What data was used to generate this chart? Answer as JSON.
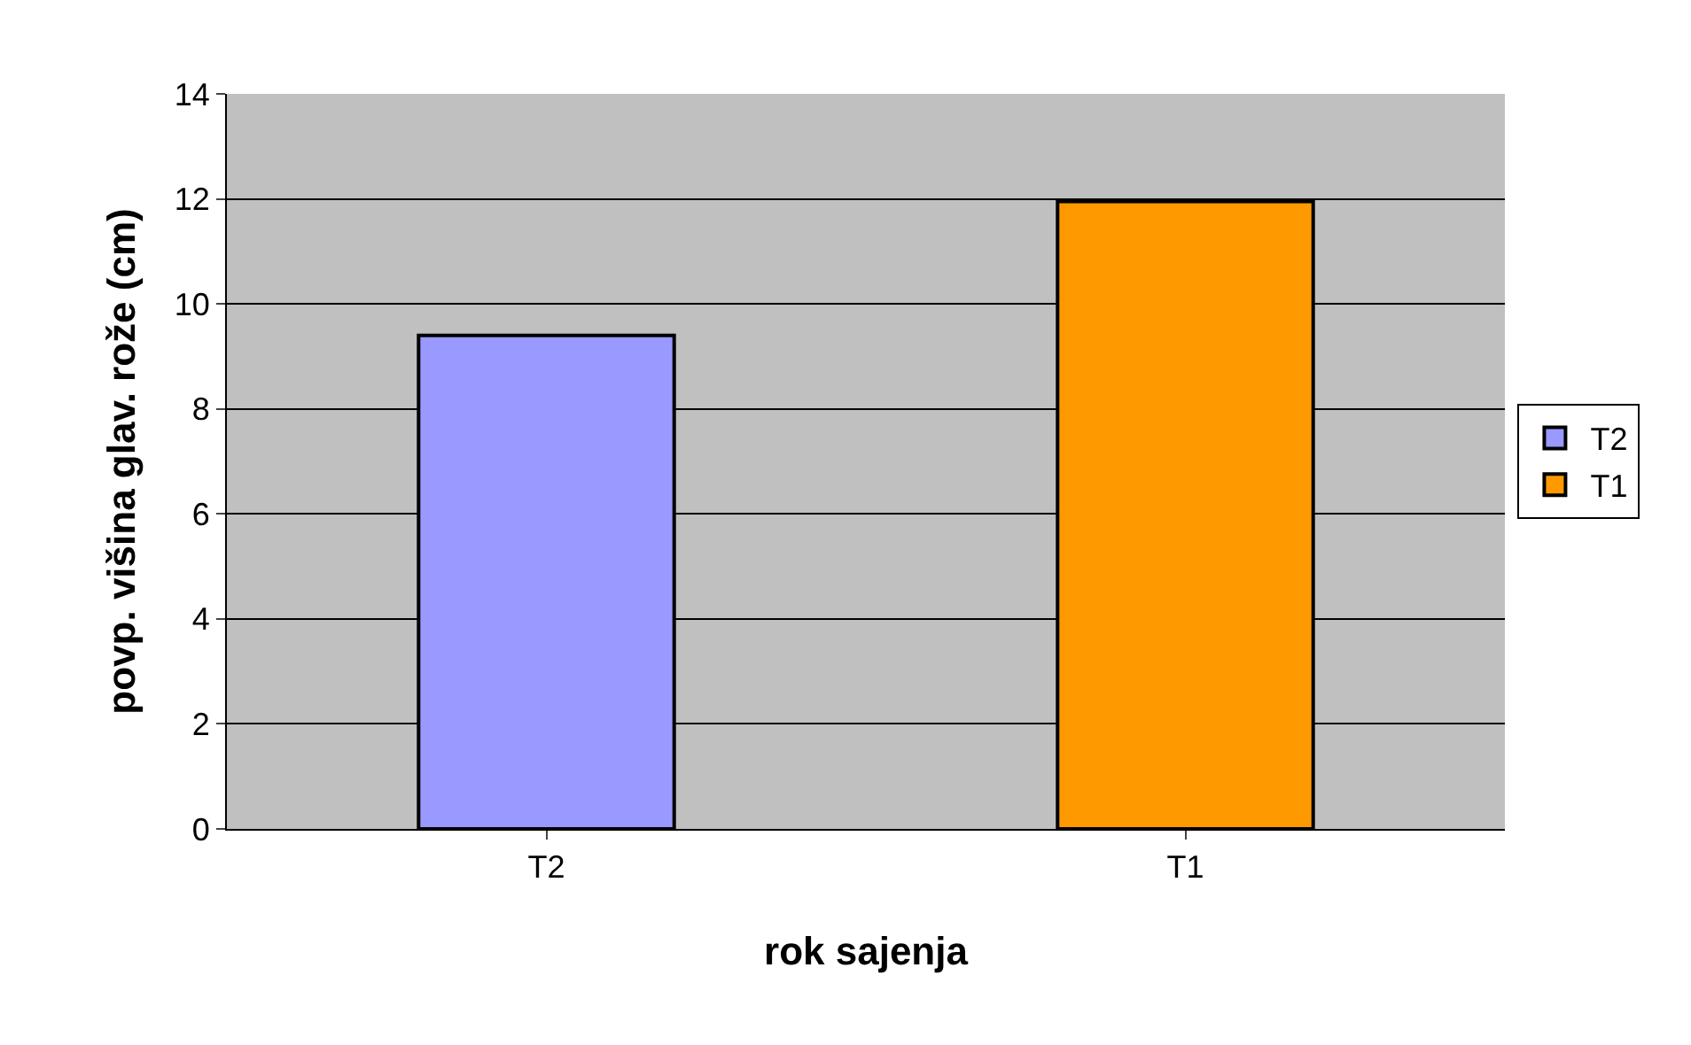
{
  "chart_data": {
    "type": "bar",
    "xlabel": "rok sajenja",
    "ylabel": "povp. višina glav. rože (cm)",
    "categories": [
      "T2",
      "T1"
    ],
    "series": [
      {
        "name": "T2",
        "color": "#9999ff",
        "values": [
          9.4,
          null
        ]
      },
      {
        "name": "T1",
        "color": "#ff9900",
        "values": [
          null,
          11.95
        ]
      }
    ],
    "ylim": [
      0,
      14
    ],
    "yticks": [
      0,
      2,
      4,
      6,
      8,
      10,
      12,
      14
    ],
    "grid": "y",
    "legend": "right"
  }
}
